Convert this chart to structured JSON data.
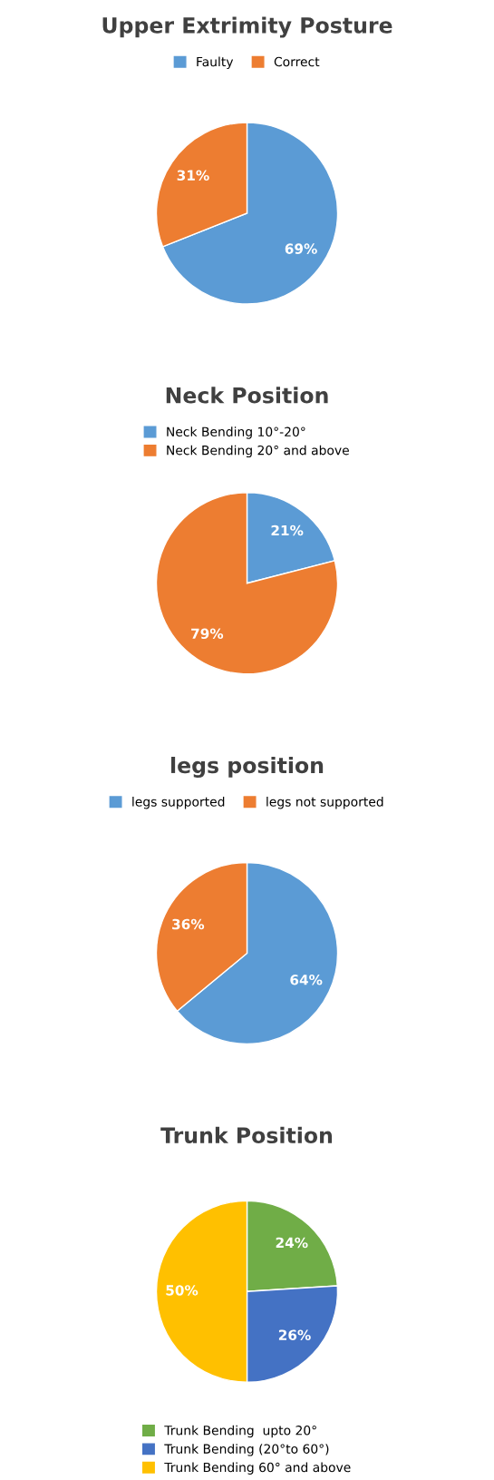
{
  "chart_data": [
    {
      "type": "pie",
      "title": "Upper Extrimity Posture",
      "categories": [
        "Faulty",
        "Correct"
      ],
      "values": [
        69,
        31
      ],
      "value_labels": [
        "69%",
        "31%"
      ],
      "colors": [
        "#5b9bd5",
        "#ed7d31"
      ],
      "legend": "top"
    },
    {
      "type": "pie",
      "title": "Neck Position",
      "categories": [
        "Neck Bending 10°-20°",
        "Neck Bending 20° and above"
      ],
      "values": [
        21,
        79
      ],
      "value_labels": [
        "21%",
        "79%"
      ],
      "colors": [
        "#5b9bd5",
        "#ed7d31"
      ],
      "legend": "top"
    },
    {
      "type": "pie",
      "title": "legs position",
      "categories": [
        "legs supported",
        "legs not supported"
      ],
      "values": [
        64,
        36
      ],
      "value_labels": [
        "64%",
        "36%"
      ],
      "colors": [
        "#5b9bd5",
        "#ed7d31"
      ],
      "legend": "top"
    },
    {
      "type": "pie",
      "title": "Trunk Position",
      "categories": [
        "Trunk Bending  upto 20°",
        "Trunk Bending (20°to 60°)",
        "Trunk Bending 60° and above"
      ],
      "values": [
        24,
        26,
        50
      ],
      "value_labels": [
        "24%",
        "26%",
        "50%"
      ],
      "colors": [
        "#70ad47",
        "#4472c4",
        "#ffc000"
      ],
      "legend": "bottom"
    }
  ]
}
